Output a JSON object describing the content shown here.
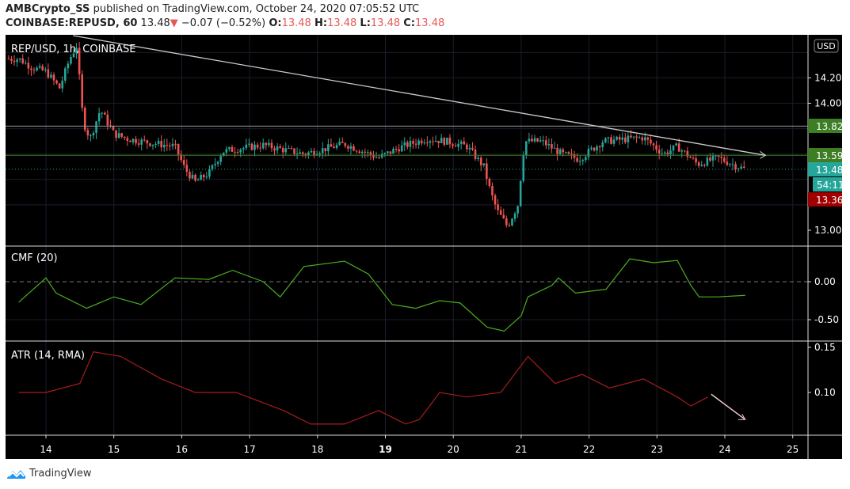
{
  "header": {
    "author": "AMBCrypto_SS",
    "published": "published on TradingView.com, October 24, 2020 07:05:52 UTC",
    "symbol": "COINBASE:REPUSD, 60",
    "last": "13.48",
    "change": "−0.07 (−0.52%)",
    "o_label": "O:",
    "o": "13.48",
    "h_label": "H:",
    "h": "13.48",
    "l_label": "L:",
    "l": "13.48",
    "c_label": "C:",
    "c": "13.48"
  },
  "footer": {
    "brand": "TradingView"
  },
  "colors": {
    "up": "#26a69a",
    "down": "#ef5350",
    "cmf": "#4caf1e",
    "atr": "#a61c1c",
    "trend": "#cccccc",
    "support": "#3d7d23",
    "teal": "#26a69a",
    "bg": "#000000"
  },
  "chart_data": [
    {
      "type": "candlestick",
      "title": "REP/USD, 1h, COINBASE",
      "currency": "USD",
      "xlabel": "",
      "ylabel": "",
      "x_ticks": [
        "14",
        "15",
        "16",
        "17",
        "18",
        "19",
        "20",
        "21",
        "22",
        "23",
        "24",
        "25"
      ],
      "y_ticks": [
        "13.00",
        "14.00",
        "14.20"
      ],
      "ylim": [
        12.9,
        14.45
      ],
      "price_labels": [
        {
          "value": "13.82",
          "color": "#3d7d23"
        },
        {
          "value": "13.59",
          "color": "#3d7d23"
        },
        {
          "value": "13.48",
          "color": "#26a69a"
        },
        {
          "value": "54:11",
          "color": "#26a69a"
        },
        {
          "value": "13.36",
          "color": "#a00000"
        }
      ],
      "horizontal_lines": [
        13.82,
        13.59,
        13.48
      ],
      "trendline": {
        "from": [
          14.4,
          14.5
        ],
        "to": [
          24.6,
          13.59
        ]
      },
      "close_series": {
        "x": [
          13.6,
          13.8,
          14.0,
          14.2,
          14.35,
          14.45,
          14.55,
          14.65,
          14.8,
          15.0,
          15.2,
          15.4,
          15.65,
          15.9,
          16.05,
          16.2,
          16.4,
          16.6,
          16.8,
          17.2,
          17.8,
          18.4,
          18.9,
          19.2,
          19.6,
          19.9,
          20.2,
          20.45,
          20.55,
          20.65,
          20.8,
          20.95,
          21.05,
          21.3,
          21.6,
          21.85,
          22.2,
          22.8,
          23.1,
          23.3,
          23.6,
          23.9,
          24.2,
          24.3
        ],
        "close": [
          14.35,
          14.28,
          14.25,
          14.12,
          14.35,
          14.45,
          13.85,
          13.72,
          13.95,
          13.76,
          13.72,
          13.7,
          13.68,
          13.66,
          13.48,
          13.38,
          13.45,
          13.62,
          13.64,
          13.67,
          13.6,
          13.68,
          13.57,
          13.65,
          13.72,
          13.7,
          13.66,
          13.5,
          13.3,
          13.15,
          13.03,
          13.2,
          13.7,
          13.7,
          13.6,
          13.56,
          13.7,
          13.73,
          13.6,
          13.66,
          13.52,
          13.57,
          13.5,
          13.48
        ]
      }
    },
    {
      "type": "line",
      "title": "CMF (20)",
      "y_ticks": [
        "0.00",
        "-0.50"
      ],
      "ylim": [
        -0.82,
        0.45
      ],
      "x": [
        13.6,
        14.0,
        14.15,
        14.6,
        15.0,
        15.4,
        15.9,
        16.4,
        16.75,
        17.2,
        17.45,
        17.8,
        18.4,
        18.75,
        19.1,
        19.45,
        19.8,
        20.1,
        20.5,
        20.75,
        21.0,
        21.1,
        21.45,
        21.55,
        21.8,
        22.25,
        22.6,
        22.95,
        23.3,
        23.5,
        23.62,
        23.9,
        24.3
      ],
      "values": [
        -0.27,
        0.05,
        -0.15,
        -0.35,
        -0.2,
        -0.3,
        0.05,
        0.03,
        0.15,
        0.0,
        -0.2,
        0.2,
        0.27,
        0.1,
        -0.3,
        -0.35,
        -0.25,
        -0.28,
        -0.6,
        -0.65,
        -0.45,
        -0.2,
        -0.05,
        0.05,
        -0.15,
        -0.1,
        0.3,
        0.25,
        0.28,
        -0.05,
        -0.2,
        -0.2,
        -0.18
      ]
    },
    {
      "type": "line",
      "title": "ATR (14, RMA)",
      "y_ticks": [
        "0.15",
        "0.10"
      ],
      "ylim": [
        0.053,
        0.156
      ],
      "x": [
        13.6,
        14.0,
        14.5,
        14.7,
        15.1,
        15.7,
        16.2,
        16.8,
        17.5,
        17.9,
        18.4,
        18.9,
        19.3,
        19.5,
        19.8,
        20.2,
        20.7,
        21.1,
        21.5,
        21.9,
        22.3,
        22.8,
        23.3,
        23.5,
        23.75
      ],
      "values": [
        0.1,
        0.1,
        0.11,
        0.145,
        0.14,
        0.115,
        0.1,
        0.1,
        0.08,
        0.065,
        0.065,
        0.08,
        0.065,
        0.07,
        0.1,
        0.095,
        0.1,
        0.14,
        0.11,
        0.12,
        0.105,
        0.115,
        0.095,
        0.085,
        0.095
      ],
      "arrow": {
        "from": [
          23.8,
          0.098
        ],
        "to": [
          24.3,
          0.07
        ]
      }
    }
  ]
}
